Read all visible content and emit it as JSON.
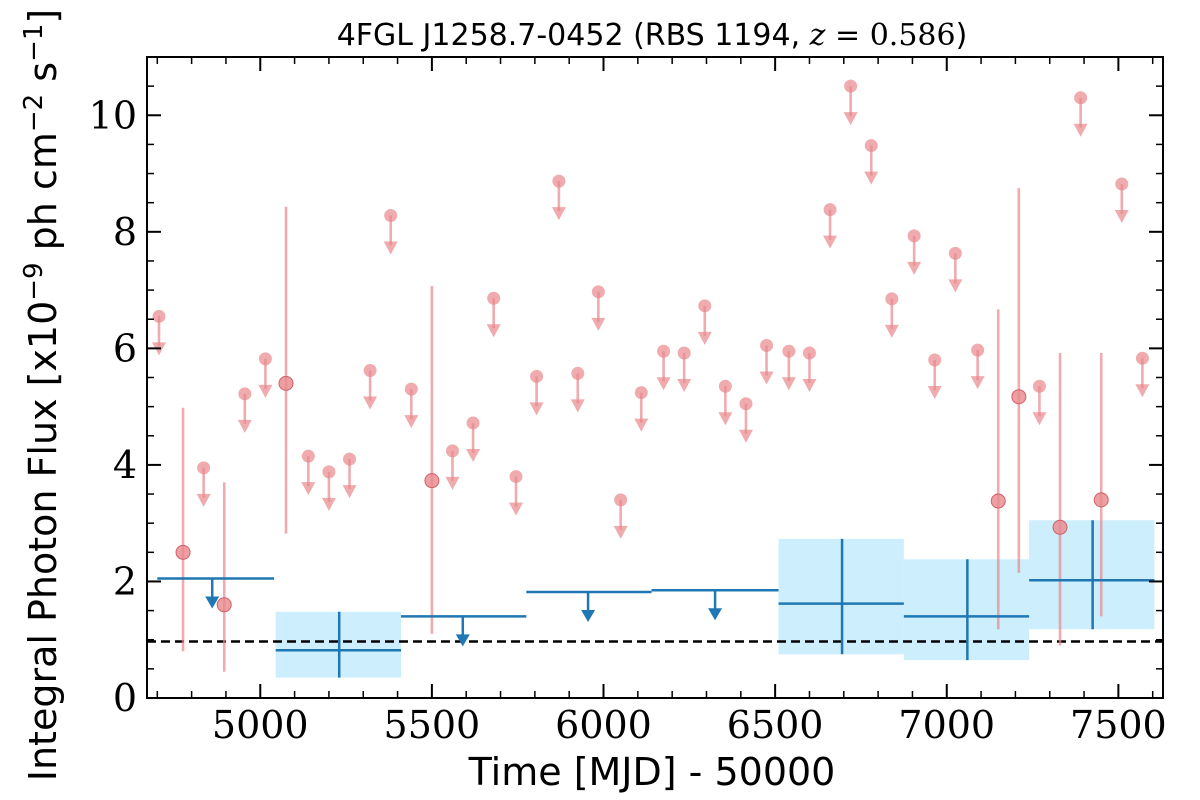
{
  "chart_data": {
    "type": "scatter",
    "title": "4FGL J1258.7-0452 (RBS 1194, z = 0.586)",
    "title_parts": {
      "main": "4FGL J1258.7-0452 (RBS 1194, ",
      "z_var": "z",
      "z_eq": " = 0.586",
      "close": ")"
    },
    "xlabel": "Time [MJD] - 50000",
    "ylabel": "Integral Photon Flux [x10",
    "ylabel_exp": "−9",
    "ylabel_mid": " ph cm",
    "ylabel_exp2": "−2",
    "ylabel_end": " s",
    "ylabel_exp3": "−1",
    "ylabel_close": "]",
    "xlim": [
      4670,
      7630
    ],
    "ylim": [
      0,
      11
    ],
    "xticks": [
      "5000",
      "5500",
      "6000",
      "6500",
      "7000",
      "7500"
    ],
    "xtick_values": [
      5000,
      5500,
      6000,
      6500,
      7000,
      7500
    ],
    "yticks": [
      "0",
      "2",
      "4",
      "6",
      "8",
      "10"
    ],
    "ytick_values": [
      0,
      2,
      4,
      6,
      8,
      10
    ],
    "reference_line": {
      "y": 0.97,
      "style": "dashed",
      "color": "#000000"
    },
    "colors": {
      "short_bins": "#e8888c",
      "long_bins": "#1f77b4",
      "error_band": "#cdeefc"
    },
    "short_bin_upper_limits": [
      {
        "x": 4705,
        "y": 6.55
      },
      {
        "x": 4835,
        "y": 3.95
      },
      {
        "x": 4955,
        "y": 5.22
      },
      {
        "x": 5015,
        "y": 5.82
      },
      {
        "x": 5140,
        "y": 4.15
      },
      {
        "x": 5200,
        "y": 3.88
      },
      {
        "x": 5260,
        "y": 4.1
      },
      {
        "x": 5320,
        "y": 5.62
      },
      {
        "x": 5380,
        "y": 8.28
      },
      {
        "x": 5440,
        "y": 5.3
      },
      {
        "x": 5560,
        "y": 4.24
      },
      {
        "x": 5620,
        "y": 4.72
      },
      {
        "x": 5680,
        "y": 6.86
      },
      {
        "x": 5745,
        "y": 3.8
      },
      {
        "x": 5805,
        "y": 5.52
      },
      {
        "x": 5870,
        "y": 8.87
      },
      {
        "x": 5925,
        "y": 5.57
      },
      {
        "x": 5985,
        "y": 6.97
      },
      {
        "x": 6050,
        "y": 3.4
      },
      {
        "x": 6110,
        "y": 5.24
      },
      {
        "x": 6175,
        "y": 5.95
      },
      {
        "x": 6235,
        "y": 5.92
      },
      {
        "x": 6295,
        "y": 6.73
      },
      {
        "x": 6355,
        "y": 5.35
      },
      {
        "x": 6415,
        "y": 5.05
      },
      {
        "x": 6475,
        "y": 6.05
      },
      {
        "x": 6540,
        "y": 5.95
      },
      {
        "x": 6600,
        "y": 5.92
      },
      {
        "x": 6660,
        "y": 8.38
      },
      {
        "x": 6720,
        "y": 10.5
      },
      {
        "x": 6780,
        "y": 9.48
      },
      {
        "x": 6840,
        "y": 6.85
      },
      {
        "x": 6905,
        "y": 7.93
      },
      {
        "x": 6965,
        "y": 5.8
      },
      {
        "x": 7025,
        "y": 7.63
      },
      {
        "x": 7090,
        "y": 5.97
      },
      {
        "x": 7270,
        "y": 5.35
      },
      {
        "x": 7390,
        "y": 10.3
      },
      {
        "x": 7510,
        "y": 8.82
      },
      {
        "x": 7570,
        "y": 5.83
      }
    ],
    "short_bin_detections": [
      {
        "x": 4775,
        "y": 2.5,
        "y_low": 0.8,
        "y_high": 4.98
      },
      {
        "x": 4895,
        "y": 1.6,
        "y_low": 0.45,
        "y_high": 3.7
      },
      {
        "x": 5075,
        "y": 5.4,
        "y_low": 2.82,
        "y_high": 8.43
      },
      {
        "x": 5500,
        "y": 3.73,
        "y_low": 1.1,
        "y_high": 7.07
      },
      {
        "x": 7150,
        "y": 3.38,
        "y_low": 1.18,
        "y_high": 6.67
      },
      {
        "x": 7210,
        "y": 5.17,
        "y_low": 2.15,
        "y_high": 8.75
      },
      {
        "x": 7330,
        "y": 2.93,
        "y_low": 0.9,
        "y_high": 5.92
      },
      {
        "x": 7450,
        "y": 3.4,
        "y_low": 1.4,
        "y_high": 5.92
      }
    ],
    "long_bin_upper_limits": [
      {
        "x_start": 4700,
        "x_end": 5040,
        "x": 4860,
        "y": 2.05
      },
      {
        "x_start": 5410,
        "x_end": 5775,
        "x": 5590,
        "y": 1.4
      },
      {
        "x_start": 5775,
        "x_end": 6140,
        "x": 5955,
        "y": 1.82
      },
      {
        "x_start": 6140,
        "x_end": 6510,
        "x": 6325,
        "y": 1.85
      }
    ],
    "long_bin_detections": [
      {
        "x_start": 5045,
        "x_end": 5410,
        "x": 5230,
        "y": 0.82,
        "y_low": 0.35,
        "y_high": 1.48
      },
      {
        "x_start": 6510,
        "x_end": 6875,
        "x": 6695,
        "y": 1.62,
        "y_low": 0.75,
        "y_high": 2.73
      },
      {
        "x_start": 6875,
        "x_end": 7240,
        "x": 7060,
        "y": 1.4,
        "y_low": 0.65,
        "y_high": 2.38
      },
      {
        "x_start": 7240,
        "x_end": 7605,
        "x": 7425,
        "y": 2.02,
        "y_low": 1.18,
        "y_high": 3.05
      }
    ]
  }
}
